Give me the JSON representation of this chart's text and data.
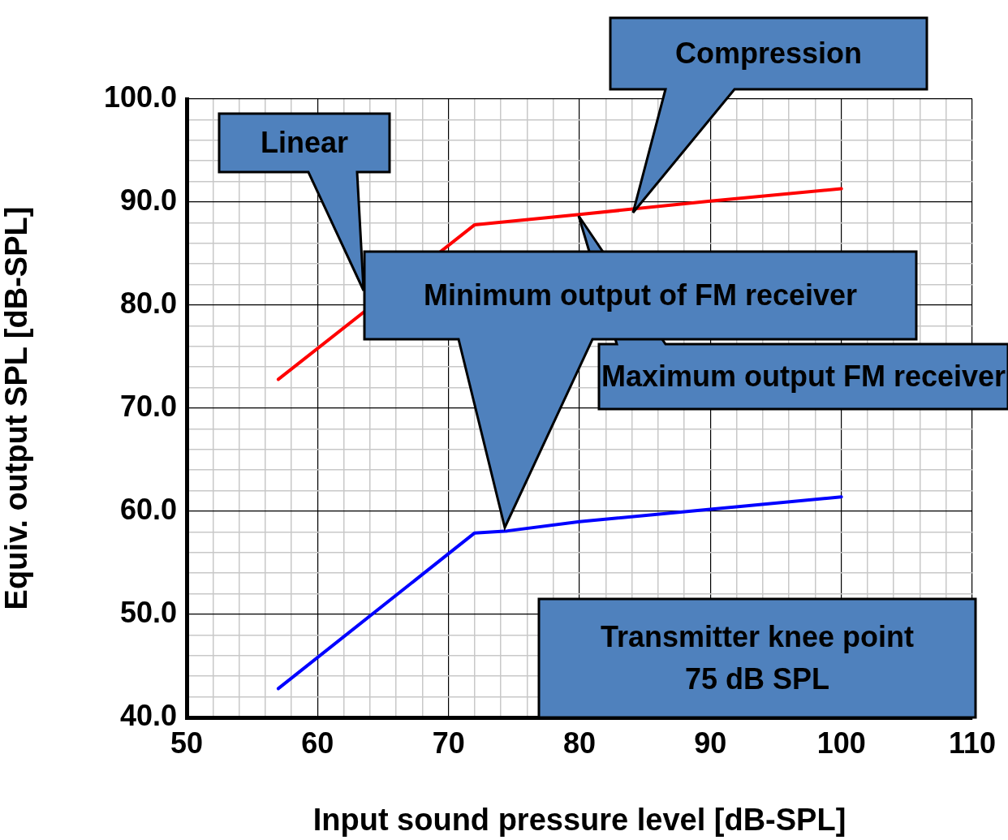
{
  "chart_data": {
    "type": "line",
    "xlabel": "Input sound pressure level [dB-SPL]",
    "ylabel": "Equiv. output SPL [dB-SPL]",
    "xlim": [
      50,
      110
    ],
    "xticks": [
      50,
      {
        "value": 52,
        "label": null
      },
      {
        "value": 54,
        "label": null
      },
      {
        "value": 56,
        "label": null
      },
      {
        "value": 58,
        "label": null
      },
      60,
      {
        "value": 62,
        "label": null
      },
      {
        "value": 64,
        "label": null
      },
      {
        "value": 66,
        "label": null
      },
      {
        "value": 68,
        "label": null
      },
      70,
      {
        "value": 72,
        "label": null
      },
      {
        "value": 74,
        "label": null
      },
      {
        "value": 76,
        "label": null
      },
      {
        "value": 78,
        "label": null
      },
      80,
      {
        "value": 82,
        "label": null
      },
      {
        "value": 84,
        "label": null
      },
      {
        "value": 86,
        "label": null
      },
      {
        "value": 88,
        "label": null
      },
      90,
      {
        "value": 92,
        "label": null
      },
      {
        "value": 94,
        "label": null
      },
      {
        "value": 96,
        "label": null
      },
      {
        "value": 98,
        "label": null
      },
      100,
      {
        "value": 102,
        "label": null
      },
      {
        "value": 104,
        "label": null
      },
      {
        "value": 106,
        "label": null
      },
      {
        "value": 108,
        "label": null
      },
      110
    ],
    "ylim": [
      40,
      100
    ],
    "yticks": [
      {
        "value": 40,
        "label": "40.0"
      },
      {
        "value": 42,
        "label": null
      },
      {
        "value": 44,
        "label": null
      },
      {
        "value": 46,
        "label": null
      },
      {
        "value": 48,
        "label": null
      },
      {
        "value": 50,
        "label": "50.0"
      },
      {
        "value": 52,
        "label": null
      },
      {
        "value": 54,
        "label": null
      },
      {
        "value": 56,
        "label": null
      },
      {
        "value": 58,
        "label": null
      },
      {
        "value": 60,
        "label": "60.0"
      },
      {
        "value": 62,
        "label": null
      },
      {
        "value": 64,
        "label": null
      },
      {
        "value": 66,
        "label": null
      },
      {
        "value": 68,
        "label": null
      },
      {
        "value": 70,
        "label": "70.0"
      },
      {
        "value": 72,
        "label": null
      },
      {
        "value": 74,
        "label": null
      },
      {
        "value": 76,
        "label": null
      },
      {
        "value": 78,
        "label": null
      },
      {
        "value": 80,
        "label": "80.0"
      },
      {
        "value": 82,
        "label": null
      },
      {
        "value": 84,
        "label": null
      },
      {
        "value": 86,
        "label": null
      },
      {
        "value": 88,
        "label": null
      },
      {
        "value": 90,
        "label": "90.0"
      },
      {
        "value": 92,
        "label": null
      },
      {
        "value": 94,
        "label": null
      },
      {
        "value": 96,
        "label": null
      },
      {
        "value": 98,
        "label": null
      },
      {
        "value": 100,
        "label": "100.0"
      }
    ],
    "grid": true,
    "legend": false,
    "marker": "none",
    "line_style": "solid",
    "series": [
      {
        "color": "#ff0000",
        "x": [
          57,
          72,
          80,
          90,
          100
        ],
        "values": [
          72.8,
          87.8,
          88.8,
          90.1,
          91.3
        ]
      },
      {
        "color": "#0000ff",
        "x": [
          57,
          71,
          72,
          74.5,
          80,
          90,
          100
        ],
        "values": [
          42.8,
          56.9,
          57.9,
          58.1,
          59.0,
          60.2,
          61.4
        ]
      }
    ],
    "annotations": [
      "Linear",
      "Compression",
      "Maximum output FM receiver",
      "Minimum output of FM receiver",
      "Transmitter knee point\n75 dB SPL"
    ]
  }
}
